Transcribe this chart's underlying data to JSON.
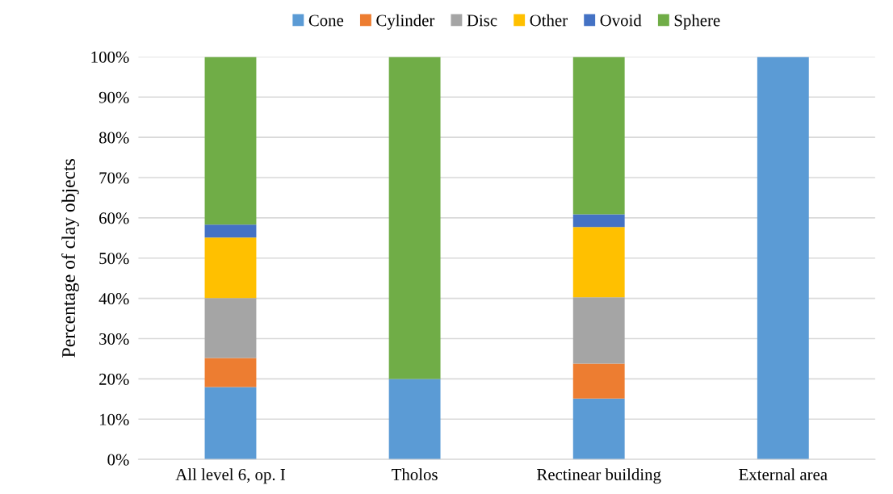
{
  "chart_data": {
    "type": "bar",
    "stacked": true,
    "ylabel": "Percentage of clay objects",
    "categories": [
      "All level 6, op. I",
      "Tholos",
      "Rectinear building",
      "External area"
    ],
    "series": [
      {
        "name": "Cone",
        "color": "#5b9bd5",
        "values": [
          18,
          20,
          15.1,
          100
        ]
      },
      {
        "name": "Cylinder",
        "color": "#ed7d31",
        "values": [
          7.2,
          0,
          8.7,
          0
        ]
      },
      {
        "name": "Disc",
        "color": "#a5a5a5",
        "values": [
          14.9,
          0,
          16.5,
          0
        ]
      },
      {
        "name": "Other",
        "color": "#ffc000",
        "values": [
          15,
          0,
          17.4,
          0
        ]
      },
      {
        "name": "Ovoid",
        "color": "#4472c4",
        "values": [
          3.2,
          0,
          3.2,
          0
        ]
      },
      {
        "name": "Sphere",
        "color": "#70ad47",
        "values": [
          41.7,
          80,
          39.1,
          0
        ]
      }
    ],
    "ylim": [
      0,
      100
    ],
    "yticks": [
      {
        "value": 0,
        "label": "0%"
      },
      {
        "value": 10,
        "label": "10%"
      },
      {
        "value": 20,
        "label": "20%"
      },
      {
        "value": 30,
        "label": "30%"
      },
      {
        "value": 40,
        "label": "40%"
      },
      {
        "value": 50,
        "label": "50%"
      },
      {
        "value": 60,
        "label": "60%"
      },
      {
        "value": 70,
        "label": "70%"
      },
      {
        "value": 80,
        "label": "80%"
      },
      {
        "value": 90,
        "label": "90%"
      },
      {
        "value": 100,
        "label": "100%"
      }
    ],
    "grid": "y",
    "legend": "top"
  }
}
